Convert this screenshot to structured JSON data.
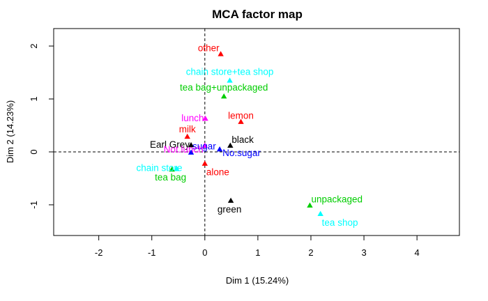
{
  "chart_data": {
    "type": "scatter",
    "title": "MCA factor map",
    "xlabel": "Dim 1 (15.24%)",
    "ylabel": "Dim 2 (14.23%)",
    "xlim": [
      -2.85,
      4.8
    ],
    "ylim": [
      -1.58,
      2.33
    ],
    "x_ticks": [
      -2,
      -1,
      0,
      1,
      2,
      3,
      4
    ],
    "y_ticks": [
      -1,
      0,
      1,
      2
    ],
    "grid": false,
    "reference_lines": {
      "x": 0,
      "y": 0,
      "style": "dashed"
    },
    "colors": {
      "black": "#000000",
      "red": "#ff0000",
      "green": "#00cd00",
      "blue": "#0000ff",
      "cyan": "#00ffff",
      "magenta": "#ff00ff"
    },
    "points": [
      {
        "label": "other",
        "x": 0.3,
        "y": 1.85,
        "color": "red",
        "anchor": "end",
        "dx": -2,
        "dy": -4
      },
      {
        "label": "chain store+tea shop",
        "x": 0.47,
        "y": 1.35,
        "color": "cyan",
        "anchor": "middle",
        "dx": 0,
        "dy": -8
      },
      {
        "label": "tea bag+unpackaged",
        "x": 0.36,
        "y": 1.05,
        "color": "green",
        "anchor": "middle",
        "dx": 0,
        "dy": -8
      },
      {
        "label": "lunch",
        "x": 0.01,
        "y": 0.63,
        "color": "magenta",
        "anchor": "end",
        "dx": -2,
        "dy": 4
      },
      {
        "label": "lemon",
        "x": 0.68,
        "y": 0.57,
        "color": "red",
        "anchor": "middle",
        "dx": 0,
        "dy": -4
      },
      {
        "label": "milk",
        "x": -0.33,
        "y": 0.29,
        "color": "red",
        "anchor": "middle",
        "dx": 0,
        "dy": -6
      },
      {
        "label": "black",
        "x": 0.48,
        "y": 0.12,
        "color": "black",
        "anchor": "start",
        "dx": 2,
        "dy": -4
      },
      {
        "label": "Earl Grey",
        "x": -0.26,
        "y": 0.13,
        "color": "black",
        "anchor": "end",
        "dx": -2,
        "dy": 4
      },
      {
        "label": "sugar",
        "x": -0.26,
        "y": -0.01,
        "color": "blue",
        "anchor": "start",
        "dx": 2,
        "dy": -4
      },
      {
        "label": "No.sugar",
        "x": 0.28,
        "y": 0.05,
        "color": "blue",
        "anchor": "start",
        "dx": 4,
        "dy": 10
      },
      {
        "label": "Not.lunch",
        "x": 0.0,
        "y": 0.12,
        "color": "magenta",
        "anchor": "end",
        "dx": -2,
        "dy": 10
      },
      {
        "label": "alone",
        "x": 0.0,
        "y": -0.22,
        "color": "red",
        "anchor": "start",
        "dx": 2,
        "dy": 17
      },
      {
        "label": "chain store",
        "x": -0.53,
        "y": -0.32,
        "color": "cyan",
        "anchor": "end",
        "dx": 8,
        "dy": 3
      },
      {
        "label": "tea bag",
        "x": -0.62,
        "y": -0.33,
        "color": "green",
        "anchor": "middle",
        "dx": -2,
        "dy": 16
      },
      {
        "label": "green",
        "x": 0.49,
        "y": -0.92,
        "color": "black",
        "anchor": "middle",
        "dx": -2,
        "dy": 17
      },
      {
        "label": "unpackaged",
        "x": 1.98,
        "y": -1.01,
        "color": "green",
        "anchor": "start",
        "dx": 2,
        "dy": -4
      },
      {
        "label": "tea shop",
        "x": 2.18,
        "y": -1.17,
        "color": "cyan",
        "anchor": "start",
        "dx": 2,
        "dy": 17
      }
    ]
  }
}
